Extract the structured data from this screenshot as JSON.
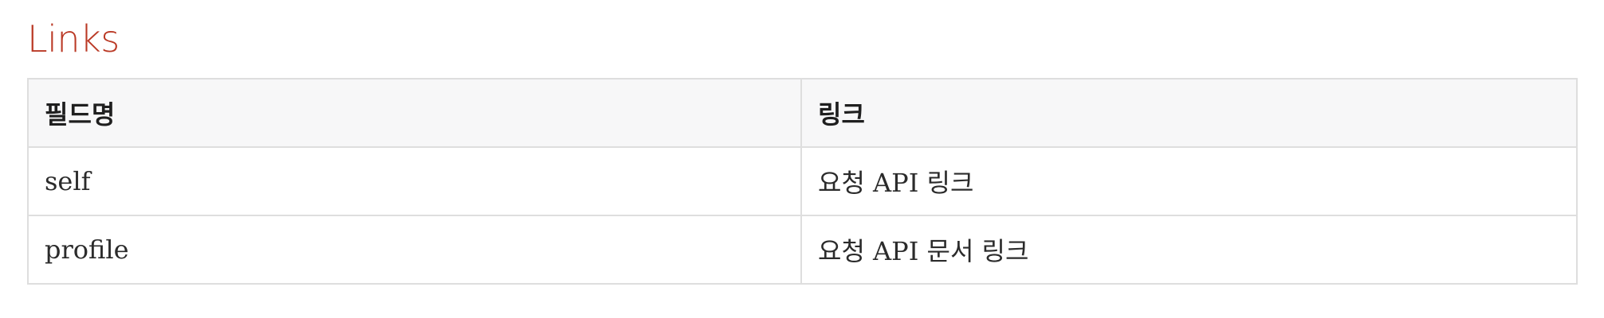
{
  "section": {
    "title": "Links"
  },
  "table": {
    "headers": [
      "필드명",
      "링크"
    ],
    "rows": [
      [
        "self",
        "요청 API 링크"
      ],
      [
        "profile",
        "요청 API 문서 링크"
      ]
    ]
  },
  "colors": {
    "title": "#ba3925",
    "header_background": "#f7f7f8",
    "border": "#dedede",
    "text": "#222222"
  }
}
